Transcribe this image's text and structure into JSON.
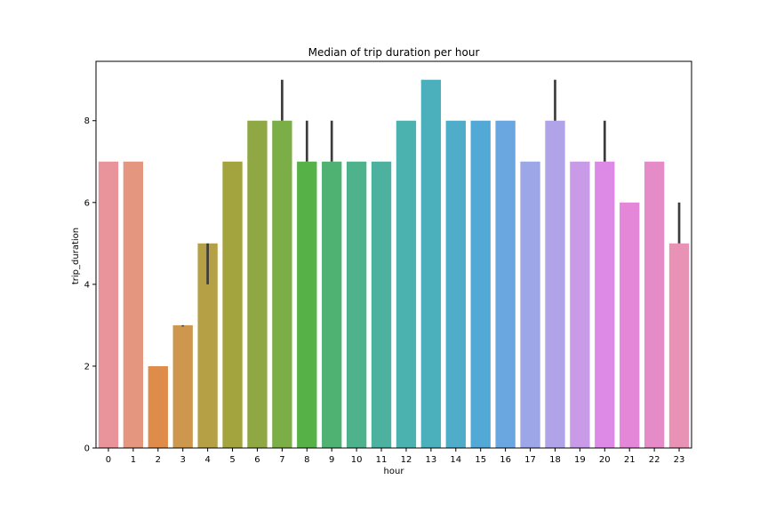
{
  "chart_data": {
    "type": "bar",
    "title": "Median of trip duration per hour",
    "xlabel": "hour",
    "ylabel": "trip_duration",
    "ylim": [
      0,
      9.45
    ],
    "yticks": [
      0,
      2,
      4,
      6,
      8
    ],
    "grid": false,
    "categories": [
      "0",
      "1",
      "2",
      "3",
      "4",
      "5",
      "6",
      "7",
      "8",
      "9",
      "10",
      "11",
      "12",
      "13",
      "14",
      "15",
      "16",
      "17",
      "18",
      "19",
      "20",
      "21",
      "22",
      "23"
    ],
    "values": [
      7,
      7,
      2,
      3,
      5,
      7,
      8,
      8,
      7,
      7,
      7,
      7,
      8,
      9,
      8,
      8,
      8,
      7,
      8,
      7,
      7,
      6,
      7,
      5
    ],
    "error_bars": [
      null,
      null,
      null,
      [
        2.97,
        3.0
      ],
      [
        4.0,
        5.0
      ],
      null,
      null,
      [
        8.0,
        9.0
      ],
      [
        7.0,
        8.0
      ],
      [
        7.0,
        8.0
      ],
      null,
      null,
      null,
      null,
      null,
      null,
      null,
      null,
      [
        8.0,
        9.0
      ],
      null,
      [
        7.0,
        8.0
      ],
      null,
      null,
      [
        5.0,
        6.0
      ]
    ],
    "colors": [
      "#e8949a",
      "#e5967f",
      "#df8b4a",
      "#cd974e",
      "#b5a046",
      "#a4a43f",
      "#8fa844",
      "#7bae46",
      "#56b146",
      "#4fb272",
      "#4eb38c",
      "#4db19f",
      "#4cb2b0",
      "#4bb0bb",
      "#4fadc9",
      "#53a9d6",
      "#6aa6e0",
      "#9da6e6",
      "#b0a3e8",
      "#c89ae8",
      "#dd89e6",
      "#e587d8",
      "#e58bc7",
      "#e892b6"
    ]
  }
}
